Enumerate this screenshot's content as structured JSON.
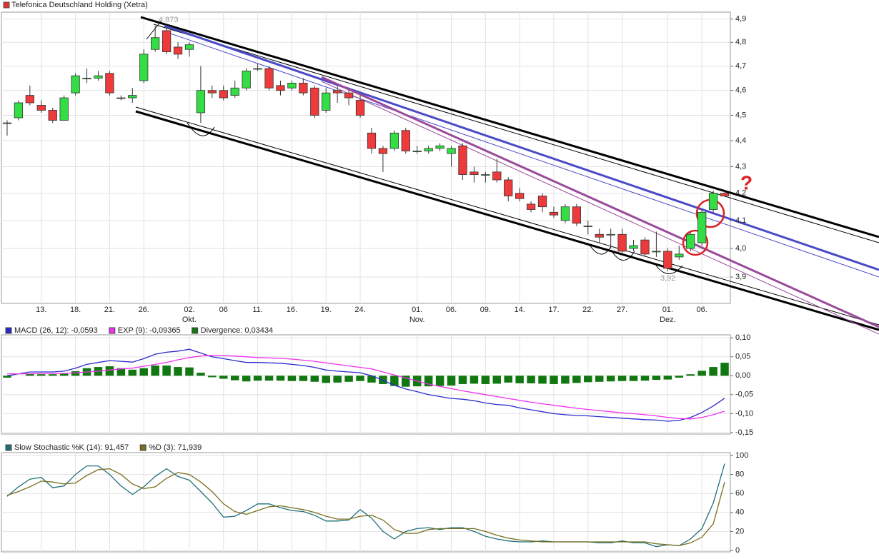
{
  "chart_data": [
    {
      "type": "candlestick",
      "title": "Telefonica Deutschland Holding (Xetra)",
      "title_color": "#e03030",
      "log_scale": true,
      "grid": true,
      "up_color": "#33dd44",
      "down_color": "#ee3a3a",
      "categories": [
        null,
        null,
        null,
        "13.",
        null,
        null,
        "18.",
        null,
        null,
        "21.",
        null,
        null,
        "26.",
        null,
        null,
        null,
        "02.",
        null,
        null,
        "06",
        null,
        null,
        "11.",
        null,
        null,
        "16.",
        null,
        null,
        "19.",
        null,
        null,
        "24.",
        null,
        null,
        null,
        null,
        "01.",
        null,
        null,
        "06.",
        null,
        null,
        "09.",
        null,
        null,
        "14.",
        null,
        null,
        "17.",
        null,
        null,
        "22.",
        null,
        null,
        "27.",
        null,
        null,
        null,
        "01.",
        null,
        null,
        "06.",
        null,
        null
      ],
      "category_months": [
        null,
        null,
        null,
        null,
        null,
        null,
        null,
        null,
        null,
        null,
        null,
        null,
        null,
        null,
        null,
        null,
        "Okt.",
        null,
        null,
        null,
        null,
        null,
        null,
        null,
        null,
        null,
        null,
        null,
        null,
        null,
        null,
        null,
        null,
        null,
        null,
        null,
        "Nov.",
        null,
        null,
        null,
        null,
        null,
        null,
        null,
        null,
        null,
        null,
        null,
        null,
        null,
        null,
        null,
        null,
        null,
        null,
        null,
        null,
        null,
        "Dez.",
        null,
        null,
        null,
        null,
        null
      ],
      "open": [
        4.47,
        4.49,
        4.58,
        4.54,
        4.52,
        4.48,
        4.59,
        4.65,
        4.65,
        4.67,
        4.57,
        4.57,
        4.64,
        4.77,
        4.85,
        4.78,
        4.77,
        4.51,
        4.6,
        4.6,
        4.58,
        4.61,
        4.69,
        4.69,
        4.62,
        4.61,
        4.63,
        4.61,
        4.52,
        4.6,
        4.59,
        4.56,
        4.43,
        4.37,
        4.37,
        4.44,
        4.36,
        4.36,
        4.37,
        4.35,
        4.38,
        4.28,
        4.27,
        4.28,
        4.25,
        4.2,
        4.16,
        4.19,
        4.13,
        4.1,
        4.15,
        4.08,
        4.05,
        4.05,
        4.05,
        4.0,
        4.03,
        3.99,
        3.99,
        3.97,
        4.0,
        4.02,
        4.14,
        4.2
      ],
      "high": [
        4.48,
        4.56,
        4.62,
        4.56,
        4.53,
        4.58,
        4.67,
        4.69,
        4.68,
        4.68,
        4.58,
        4.61,
        4.77,
        4.87,
        4.87,
        4.8,
        4.8,
        4.7,
        4.62,
        4.62,
        4.64,
        4.69,
        4.71,
        4.7,
        4.64,
        4.64,
        4.65,
        4.62,
        4.61,
        4.62,
        4.6,
        4.58,
        4.45,
        4.38,
        4.44,
        4.45,
        4.38,
        4.38,
        4.39,
        4.38,
        4.39,
        4.3,
        4.28,
        4.33,
        4.26,
        4.22,
        4.17,
        4.2,
        4.15,
        4.16,
        4.16,
        4.1,
        4.07,
        4.07,
        4.07,
        4.03,
        4.04,
        4.06,
        4.0,
        4.01,
        4.06,
        4.14,
        4.21,
        4.21
      ],
      "low": [
        4.42,
        4.48,
        4.54,
        4.51,
        4.47,
        4.48,
        4.58,
        4.63,
        4.64,
        4.58,
        4.56,
        4.55,
        4.63,
        4.76,
        4.75,
        4.73,
        4.74,
        4.47,
        4.57,
        4.56,
        4.57,
        4.6,
        4.68,
        4.6,
        4.58,
        4.6,
        4.58,
        4.49,
        4.51,
        4.55,
        4.54,
        4.49,
        4.35,
        4.28,
        4.36,
        4.35,
        4.35,
        4.35,
        4.36,
        4.3,
        4.25,
        4.24,
        4.24,
        4.24,
        4.17,
        4.17,
        4.13,
        4.13,
        4.11,
        4.09,
        4.08,
        4.05,
        4.02,
        4.0,
        3.98,
        3.99,
        3.97,
        3.97,
        3.92,
        3.96,
        3.99,
        4.01,
        4.13,
        4.19
      ],
      "close": [
        4.47,
        4.55,
        4.55,
        4.52,
        4.48,
        4.57,
        4.66,
        4.65,
        4.66,
        4.59,
        4.57,
        4.58,
        4.75,
        4.82,
        4.76,
        4.75,
        4.79,
        4.6,
        4.59,
        4.57,
        4.61,
        4.68,
        4.69,
        4.61,
        4.6,
        4.63,
        4.59,
        4.5,
        4.59,
        4.59,
        4.57,
        4.5,
        4.37,
        4.35,
        4.43,
        4.36,
        4.36,
        4.37,
        4.38,
        4.37,
        4.27,
        4.27,
        4.27,
        4.25,
        4.19,
        4.18,
        4.14,
        4.15,
        4.12,
        4.15,
        4.09,
        4.08,
        4.04,
        4.05,
        3.99,
        4.01,
        3.98,
        3.99,
        3.93,
        3.98,
        4.05,
        4.13,
        4.2,
        4.19
      ],
      "ylim": [
        3.81,
        4.93
      ],
      "yticks": [
        {
          "value": 3.9,
          "label": "3,9"
        },
        {
          "value": 4.0,
          "label": "4,0"
        },
        {
          "value": 4.1,
          "label": "4,1"
        },
        {
          "value": 4.2,
          "label": "4,2"
        },
        {
          "value": 4.3,
          "label": "4,3"
        },
        {
          "value": 4.4,
          "label": "4,4"
        },
        {
          "value": 4.5,
          "label": "4,5"
        },
        {
          "value": 4.6,
          "label": "4,6"
        },
        {
          "value": 4.7,
          "label": "4,7"
        },
        {
          "value": 4.8,
          "label": "4,8"
        },
        {
          "value": 4.9,
          "label": "4,9"
        }
      ],
      "annotations": [
        "4,873",
        "3,92",
        "?"
      ]
    },
    {
      "type": "line",
      "grid": true,
      "series": [
        {
          "name": "MACD (26, 12): -0,0593",
          "color": "#2a2acc",
          "style": "line",
          "values": [
            0.0,
            0.005,
            0.01,
            0.01,
            0.01,
            0.012,
            0.02,
            0.03,
            0.035,
            0.04,
            0.038,
            0.036,
            0.045,
            0.057,
            0.062,
            0.065,
            0.07,
            0.06,
            0.05,
            0.045,
            0.04,
            0.035,
            0.035,
            0.034,
            0.033,
            0.03,
            0.027,
            0.022,
            0.015,
            0.012,
            0.01,
            0.008,
            0.0,
            -0.012,
            -0.025,
            -0.035,
            -0.042,
            -0.05,
            -0.055,
            -0.06,
            -0.062,
            -0.066,
            -0.072,
            -0.076,
            -0.078,
            -0.085,
            -0.09,
            -0.095,
            -0.1,
            -0.103,
            -0.105,
            -0.106,
            -0.108,
            -0.11,
            -0.112,
            -0.114,
            -0.116,
            -0.117,
            -0.12,
            -0.118,
            -0.11,
            -0.097,
            -0.08,
            -0.0593
          ]
        },
        {
          "name": "EXP (9): -0,09365",
          "color": "#ee33ee",
          "style": "line",
          "values": [
            0.005,
            0.005,
            0.005,
            0.006,
            0.006,
            0.006,
            0.008,
            0.01,
            0.012,
            0.015,
            0.018,
            0.02,
            0.025,
            0.03,
            0.035,
            0.042,
            0.048,
            0.052,
            0.054,
            0.053,
            0.052,
            0.05,
            0.048,
            0.047,
            0.046,
            0.044,
            0.041,
            0.038,
            0.034,
            0.03,
            0.026,
            0.022,
            0.018,
            0.01,
            0.002,
            -0.006,
            -0.014,
            -0.022,
            -0.028,
            -0.034,
            -0.04,
            -0.045,
            -0.05,
            -0.055,
            -0.06,
            -0.065,
            -0.07,
            -0.074,
            -0.078,
            -0.082,
            -0.086,
            -0.089,
            -0.092,
            -0.095,
            -0.098,
            -0.1,
            -0.103,
            -0.106,
            -0.11,
            -0.113,
            -0.114,
            -0.11,
            -0.103,
            -0.09365
          ]
        },
        {
          "name": "Divergence: 0,03434",
          "color": "#117711",
          "style": "bar",
          "values": [
            -0.005,
            0,
            0.005,
            0.004,
            0.004,
            0.006,
            0.012,
            0.02,
            0.023,
            0.025,
            0.02,
            0.016,
            0.02,
            0.027,
            0.027,
            0.023,
            0.022,
            0.008,
            -0.004,
            -0.008,
            -0.012,
            -0.015,
            -0.013,
            -0.013,
            -0.013,
            -0.014,
            -0.014,
            -0.016,
            -0.019,
            -0.018,
            -0.016,
            -0.014,
            -0.018,
            -0.022,
            -0.027,
            -0.029,
            -0.028,
            -0.028,
            -0.027,
            -0.026,
            -0.022,
            -0.021,
            -0.022,
            -0.021,
            -0.018,
            -0.02,
            -0.02,
            -0.021,
            -0.022,
            -0.021,
            -0.019,
            -0.017,
            -0.016,
            -0.015,
            -0.014,
            -0.014,
            -0.013,
            -0.011,
            -0.01,
            -0.005,
            0.004,
            0.013,
            0.023,
            0.03434
          ]
        }
      ],
      "ylim": [
        -0.154,
        0.108
      ],
      "yticks": [
        {
          "value": -0.15,
          "label": "-0,15"
        },
        {
          "value": -0.1,
          "label": "-0,10"
        },
        {
          "value": -0.05,
          "label": "-0,05"
        },
        {
          "value": 0,
          "label": "0,00"
        },
        {
          "value": 0.05,
          "label": "0,05"
        },
        {
          "value": 0.1,
          "label": "0,10"
        }
      ]
    },
    {
      "type": "line",
      "grid": true,
      "series": [
        {
          "name": "Slow Stochastic %K (14): 91,457",
          "color": "#1f6f78",
          "style": "line",
          "values": [
            57,
            67,
            75,
            77,
            66,
            68,
            80,
            89,
            89,
            80,
            68,
            59,
            67,
            78,
            86,
            78,
            74,
            62,
            50,
            35,
            36,
            42,
            49,
            49,
            45,
            42,
            41,
            37,
            31,
            31,
            32,
            43,
            34,
            20,
            12,
            20,
            23,
            24,
            22,
            24,
            24,
            20,
            15,
            12,
            10,
            9,
            9,
            10,
            9,
            9,
            9,
            9,
            8,
            8,
            10,
            8,
            8,
            4,
            6,
            5,
            12,
            23,
            50,
            91.457
          ]
        },
        {
          "name": "%D (3): 71,939",
          "color": "#7a6e1e",
          "style": "line",
          "values": [
            58,
            62,
            67,
            73,
            72,
            70,
            71,
            79,
            85,
            86,
            80,
            70,
            65,
            67,
            76,
            82,
            80,
            72,
            62,
            49,
            41,
            38,
            42,
            46,
            47,
            45,
            43,
            40,
            36,
            33,
            33,
            36,
            37,
            32,
            22,
            18,
            18,
            22,
            23,
            23,
            23,
            23,
            20,
            16,
            13,
            11,
            10,
            9,
            9,
            9,
            9,
            9,
            9,
            9,
            9,
            9,
            9,
            7,
            6,
            5,
            8,
            14,
            28,
            71.939
          ]
        }
      ],
      "ylim": [
        -1.5,
        103
      ],
      "yticks": [
        0,
        20,
        40,
        60,
        80,
        100
      ]
    }
  ]
}
